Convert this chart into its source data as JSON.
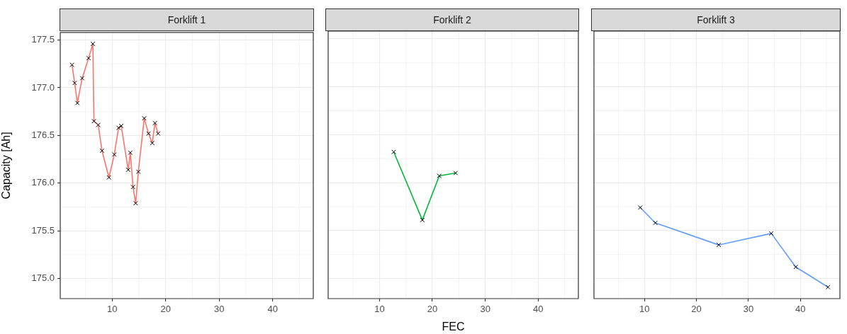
{
  "chart_data": [
    {
      "type": "line",
      "title": "Forklift 1",
      "ylabel": "Capacity [Ah]",
      "x": [
        2.5,
        3.0,
        3.5,
        4.4,
        5.6,
        6.4,
        6.6,
        7.4,
        8.1,
        9.4,
        10.4,
        11.2,
        11.7,
        13.0,
        13.4,
        13.9,
        14.4,
        14.9,
        16.0,
        16.8,
        17.5,
        18.0,
        18.6
      ],
      "series": [
        {
          "color": "#f8766d",
          "values": [
            177.24,
            177.05,
            176.84,
            177.1,
            177.31,
            177.46,
            176.65,
            176.61,
            176.34,
            176.06,
            176.3,
            176.58,
            176.6,
            176.14,
            176.32,
            175.96,
            175.79,
            176.12,
            176.68,
            176.52,
            176.42,
            176.63,
            176.52
          ]
        }
      ],
      "xlim": [
        0.3,
        47.6
      ],
      "xticks": [
        10,
        20,
        30,
        40
      ],
      "ylim": [
        174.79,
        177.58
      ],
      "yticks": [
        {
          "value": 175,
          "label": "175.0"
        },
        {
          "value": 175.5,
          "label": "175.5"
        },
        {
          "value": 176,
          "label": "176.0"
        },
        {
          "value": 176.5,
          "label": "176.5"
        },
        {
          "value": 177,
          "label": "177.0"
        },
        {
          "value": 177.5,
          "label": "177.5"
        }
      ],
      "grid": true,
      "marker": "cross",
      "legend": false
    },
    {
      "type": "line",
      "title": "Forklift 2",
      "xlabel": "FEC",
      "x": [
        12.7,
        18.1,
        21.3,
        24.4
      ],
      "series": [
        {
          "color": "#00ba38",
          "values": [
            176.32,
            175.61,
            176.07,
            176.1
          ]
        }
      ],
      "xlim": [
        0.3,
        47.6
      ],
      "xticks": [
        10,
        20,
        30,
        40
      ],
      "ylim": [
        174.79,
        177.58
      ],
      "yticks": [
        175,
        175.5,
        176,
        176.5,
        177,
        177.5
      ],
      "tick_labels": "x",
      "grid": true,
      "marker": "cross",
      "legend": false
    },
    {
      "type": "line",
      "title": "Forklift 3",
      "x": [
        9.2,
        12.1,
        24.3,
        34.4,
        39.1,
        45.3
      ],
      "series": [
        {
          "color": "#619cff",
          "values": [
            175.74,
            175.58,
            175.35,
            175.47,
            175.12,
            174.91
          ]
        }
      ],
      "xlim": [
        0.3,
        47.6
      ],
      "xticks": [
        10,
        20,
        30,
        40
      ],
      "ylim": [
        174.79,
        177.58
      ],
      "yticks": [
        175,
        175.5,
        176,
        176.5,
        177,
        177.5
      ],
      "tick_labels": "x",
      "grid": true,
      "marker": "cross",
      "legend": false
    }
  ]
}
